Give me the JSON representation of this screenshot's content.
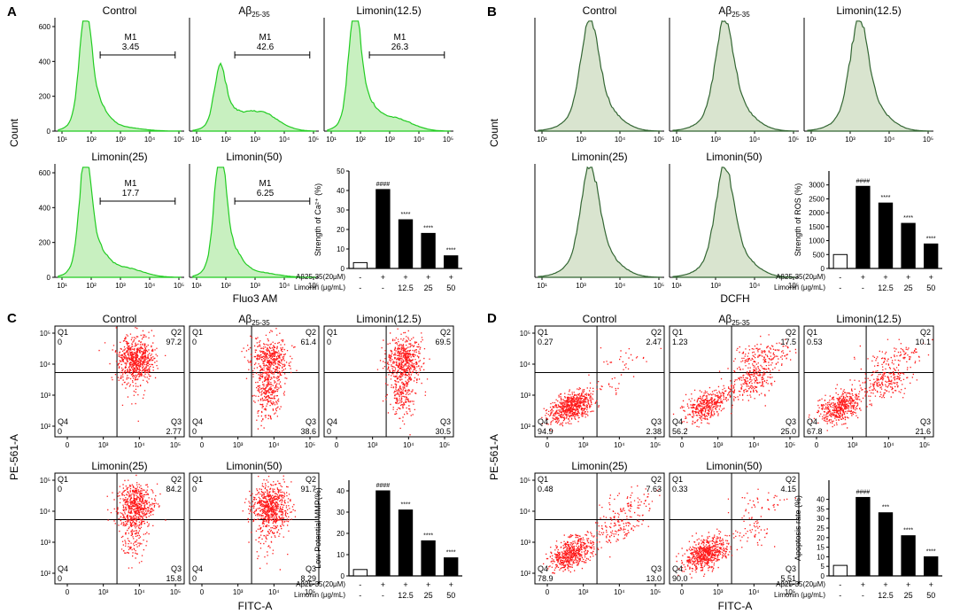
{
  "figure": {
    "panels": [
      {
        "letter": "A",
        "kind": "histogram",
        "fill": "#c8f0c0",
        "stroke": "#22cc22",
        "y_label": "Count",
        "x_label": "Fluo3 AM",
        "y_ticks": [
          "0",
          "200",
          "400",
          "600"
        ],
        "x_ticks": [
          "10¹",
          "10²",
          "10³",
          "10⁴",
          "10⁵"
        ],
        "plots": [
          {
            "title": "Control",
            "gate": "M1",
            "gate_value": "3.45"
          },
          {
            "title": "Aβ25-35",
            "gate": "M1",
            "gate_value": "42.6"
          },
          {
            "title": "Limonin(12.5)",
            "gate": "M1",
            "gate_value": "26.3"
          },
          {
            "title": "Limonin(25)",
            "gate": "M1",
            "gate_value": "17.7"
          },
          {
            "title": "Limonin(50)",
            "gate": "M1",
            "gate_value": "6.25"
          }
        ],
        "bar_chart": {
          "ylabel": "Strength of Ca²⁺ (%)",
          "ylim": [
            0,
            50
          ],
          "yticks": [
            "0",
            "10",
            "20",
            "30",
            "40",
            "50"
          ],
          "values": [
            3,
            40.5,
            25,
            18,
            6.5
          ],
          "sig": [
            "",
            "####",
            "****",
            "****",
            "****"
          ],
          "row1_label": "Aβ25-35(20μM)",
          "row1": [
            "-",
            "+",
            "+",
            "+",
            "+"
          ],
          "row2_label": "Limonin (μg/mL)",
          "row2": [
            "-",
            "-",
            "12.5",
            "25",
            "50"
          ]
        }
      },
      {
        "letter": "B",
        "kind": "histogram",
        "fill": "#d9e4cf",
        "stroke": "#336633",
        "y_label": "Count",
        "x_label": "DCFH",
        "y_ticks": [],
        "x_ticks": [
          "10¹",
          "10³",
          "10⁴",
          "10⁵"
        ],
        "plots": [
          {
            "title": "Control",
            "gate": "",
            "gate_value": ""
          },
          {
            "title": "Aβ25-35",
            "gate": "",
            "gate_value": ""
          },
          {
            "title": "Limonin(12.5)",
            "gate": "",
            "gate_value": ""
          },
          {
            "title": "Limonin(25)",
            "gate": "",
            "gate_value": ""
          },
          {
            "title": "Limonin(50)",
            "gate": "",
            "gate_value": ""
          }
        ],
        "bar_chart": {
          "ylabel": "Strength of ROS (%)",
          "ylim": [
            0,
            3500
          ],
          "yticks": [
            "0",
            "500",
            "1000",
            "1500",
            "2000",
            "2500",
            "3000"
          ],
          "values": [
            500,
            2950,
            2350,
            1620,
            880
          ],
          "sig": [
            "",
            "####",
            "****",
            "****",
            "****"
          ],
          "row1_label": "Aβ25-35(20μM)",
          "row1": [
            "-",
            "+",
            "+",
            "+",
            "+"
          ],
          "row2_label": "Limonin (μg/mL)",
          "row2": [
            "-",
            "-",
            "12.5",
            "25",
            "50"
          ]
        }
      },
      {
        "letter": "C",
        "kind": "scatter",
        "y_label": "PE-561-A",
        "x_label": "FITC-A",
        "y_ticks": [
          "10²",
          "10³",
          "10⁴",
          "10⁵"
        ],
        "x_ticks": [
          "0",
          "10³",
          "10⁴",
          "10⁵"
        ],
        "plots": [
          {
            "title": "Control",
            "q1": "0",
            "q2": "97.2",
            "q3": "2.77",
            "q4": "0"
          },
          {
            "title": "Aβ25-35",
            "q1": "0",
            "q2": "61.4",
            "q3": "38.6",
            "q4": "0"
          },
          {
            "title": "Limonin(12.5)",
            "q1": "0",
            "q2": "69.5",
            "q3": "30.5",
            "q4": "0"
          },
          {
            "title": "Limonin(25)",
            "q1": "0",
            "q2": "84.2",
            "q3": "15.8",
            "q4": "0"
          },
          {
            "title": "Limonin(50)",
            "q1": "0",
            "q2": "91.7",
            "q3": "8.29",
            "q4": "0"
          }
        ],
        "bar_chart": {
          "ylabel": "Low Potential MMP(%)",
          "ylim": [
            0,
            45
          ],
          "yticks": [
            "0",
            "10",
            "20",
            "30",
            "40"
          ],
          "values": [
            3,
            40,
            31,
            16.5,
            8.5
          ],
          "sig": [
            "",
            "####",
            "****",
            "****",
            "****"
          ],
          "row1_label": "Aβ25-35(20μM)",
          "row1": [
            "-",
            "+",
            "+",
            "+",
            "+"
          ],
          "row2_label": "Limonin (μg/mL)",
          "row2": [
            "-",
            "-",
            "12.5",
            "25",
            "50"
          ]
        }
      },
      {
        "letter": "D",
        "kind": "scatter",
        "y_label": "PE-561-A",
        "x_label": "FITC-A",
        "y_ticks": [
          "10²",
          "10³",
          "10⁴",
          "10⁵"
        ],
        "x_ticks": [
          "0",
          "10³",
          "10⁴",
          "10⁵"
        ],
        "plots": [
          {
            "title": "Control",
            "q1": "0.27",
            "q2": "2.47",
            "q3": "2.38",
            "q4": "94.9"
          },
          {
            "title": "Aβ25-35",
            "q1": "1.23",
            "q2": "17.5",
            "q3": "25.0",
            "q4": "56.2"
          },
          {
            "title": "Limonin(12.5)",
            "q1": "0.53",
            "q2": "10.1",
            "q3": "21.6",
            "q4": "67.8"
          },
          {
            "title": "Limonin(25)",
            "q1": "0.48",
            "q2": "7.63",
            "q3": "13.0",
            "q4": "78.9"
          },
          {
            "title": "Limonin(50)",
            "q1": "0.33",
            "q2": "4.15",
            "q3": "5.51",
            "q4": "90.0"
          }
        ],
        "bar_chart": {
          "ylabel": "Apoptosis rate (%)",
          "ylim": [
            0,
            50
          ],
          "yticks": [
            "0",
            "5",
            "10",
            "15",
            "20",
            "25",
            "30",
            "35",
            "40"
          ],
          "values": [
            5.5,
            41,
            33,
            21,
            10
          ],
          "sig": [
            "",
            "####",
            "***",
            "****",
            "****"
          ],
          "row1_label": "Aβ25-35(20μM)",
          "row1": [
            "-",
            "+",
            "+",
            "+",
            "+"
          ],
          "row2_label": "Limonin (μg/mL)",
          "row2": [
            "-",
            "-",
            "12.5",
            "25",
            "50"
          ]
        }
      }
    ]
  },
  "chart_data": [
    {
      "type": "bar",
      "title": "Strength of Ca²⁺ (%)",
      "categories": [
        "Control",
        "Aβ25-35",
        "Limonin 12.5",
        "Limonin 25",
        "Limonin 50"
      ],
      "values": [
        3,
        40.5,
        25,
        18,
        6.5
      ],
      "ylabel": "Strength of Ca²⁺ (%)",
      "ylim": [
        0,
        50
      ]
    },
    {
      "type": "bar",
      "title": "Strength of ROS (%)",
      "categories": [
        "Control",
        "Aβ25-35",
        "Limonin 12.5",
        "Limonin 25",
        "Limonin 50"
      ],
      "values": [
        500,
        2950,
        2350,
        1620,
        880
      ],
      "ylabel": "Strength of ROS (%)",
      "ylim": [
        0,
        3500
      ]
    },
    {
      "type": "bar",
      "title": "Low Potential MMP(%)",
      "categories": [
        "Control",
        "Aβ25-35",
        "Limonin 12.5",
        "Limonin 25",
        "Limonin 50"
      ],
      "values": [
        3,
        40,
        31,
        16.5,
        8.5
      ],
      "ylabel": "Low Potential MMP(%)",
      "ylim": [
        0,
        45
      ]
    },
    {
      "type": "bar",
      "title": "Apoptosis rate (%)",
      "categories": [
        "Control",
        "Aβ25-35",
        "Limonin 12.5",
        "Limonin 25",
        "Limonin 50"
      ],
      "values": [
        5.5,
        41,
        33,
        21,
        10
      ],
      "ylabel": "Apoptosis rate (%)",
      "ylim": [
        0,
        50
      ]
    }
  ]
}
